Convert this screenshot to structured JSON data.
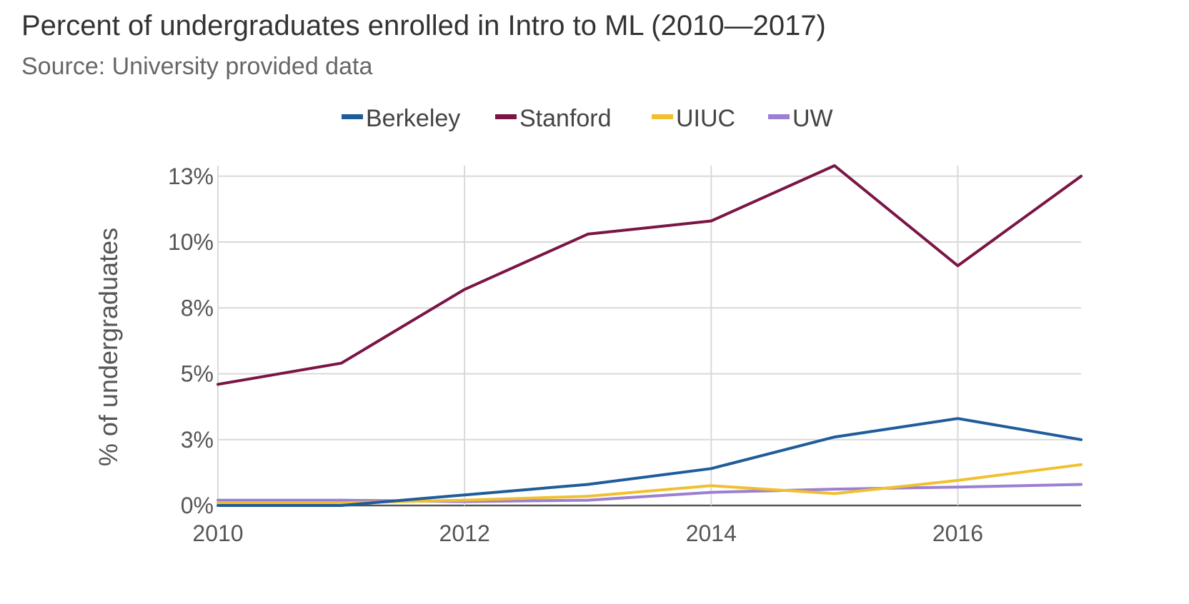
{
  "chart_data": {
    "type": "line",
    "title": "Percent of undergraduates enrolled in Intro to ML (2010—2017)",
    "subtitle": "Source: University provided data",
    "ylabel": "% of undergraduates",
    "xlabel": "",
    "x": [
      2010,
      2011,
      2012,
      2013,
      2014,
      2015,
      2016,
      2017
    ],
    "x_ticks": [
      2010,
      2012,
      2014,
      2016
    ],
    "xlim": [
      2010,
      2017
    ],
    "y_ticks": [
      0,
      2.5,
      5,
      7.5,
      10,
      12.5
    ],
    "y_tick_labels": [
      "0%",
      "3%",
      "5%",
      "8%",
      "10%",
      "13%"
    ],
    "ylim": [
      0,
      12.9
    ],
    "grid": true,
    "legend_position": "top",
    "series": [
      {
        "name": "Berkeley",
        "color": "#1f5c99",
        "values": [
          0.0,
          0.0,
          0.4,
          0.8,
          1.4,
          2.6,
          3.3,
          2.5
        ]
      },
      {
        "name": "Stanford",
        "color": "#7a1545",
        "values": [
          4.6,
          5.4,
          8.2,
          10.3,
          10.8,
          12.9,
          9.1,
          12.5
        ]
      },
      {
        "name": "UIUC",
        "color": "#f0c030",
        "values": [
          0.1,
          0.1,
          0.2,
          0.35,
          0.75,
          0.45,
          0.95,
          1.55
        ]
      },
      {
        "name": "UW",
        "color": "#9b7fd1",
        "values": [
          0.2,
          0.2,
          0.15,
          0.2,
          0.5,
          0.62,
          0.7,
          0.8
        ]
      }
    ]
  }
}
